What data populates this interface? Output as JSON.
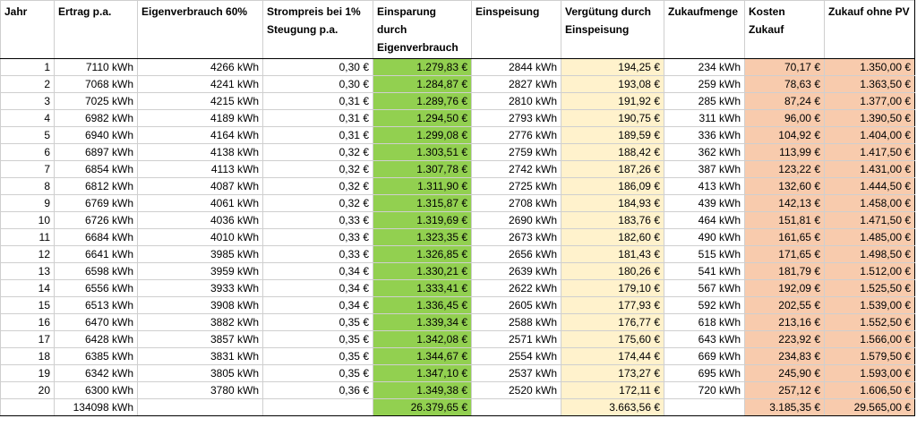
{
  "headers": [
    "Jahr",
    "Ertrag p.a.",
    "Eigenverbrauch 60%",
    "Strompreis bei 1% Steugung p.a.",
    "Einsparung durch Eigenverbrauch",
    "Einspeisung",
    "Vergütung durch Einspeisung",
    "Zukaufmenge",
    "Kosten Zukauf",
    "Zukauf ohne PV"
  ],
  "rows": [
    [
      "1",
      "7110 kWh",
      "4266 kWh",
      "0,30 €",
      "1.279,83 €",
      "2844 kWh",
      "194,25 €",
      "234 kWh",
      "70,17 €",
      "1.350,00 €"
    ],
    [
      "2",
      "7068 kWh",
      "4241 kWh",
      "0,30 €",
      "1.284,87 €",
      "2827 kWh",
      "193,08 €",
      "259 kWh",
      "78,63 €",
      "1.363,50 €"
    ],
    [
      "3",
      "7025 kWh",
      "4215 kWh",
      "0,31 €",
      "1.289,76 €",
      "2810 kWh",
      "191,92 €",
      "285 kWh",
      "87,24 €",
      "1.377,00 €"
    ],
    [
      "4",
      "6982 kWh",
      "4189 kWh",
      "0,31 €",
      "1.294,50 €",
      "2793 kWh",
      "190,75 €",
      "311 kWh",
      "96,00 €",
      "1.390,50 €"
    ],
    [
      "5",
      "6940 kWh",
      "4164 kWh",
      "0,31 €",
      "1.299,08 €",
      "2776 kWh",
      "189,59 €",
      "336 kWh",
      "104,92 €",
      "1.404,00 €"
    ],
    [
      "6",
      "6897 kWh",
      "4138 kWh",
      "0,32 €",
      "1.303,51 €",
      "2759 kWh",
      "188,42 €",
      "362 kWh",
      "113,99 €",
      "1.417,50 €"
    ],
    [
      "7",
      "6854 kWh",
      "4113 kWh",
      "0,32 €",
      "1.307,78 €",
      "2742 kWh",
      "187,26 €",
      "387 kWh",
      "123,22 €",
      "1.431,00 €"
    ],
    [
      "8",
      "6812 kWh",
      "4087 kWh",
      "0,32 €",
      "1.311,90 €",
      "2725 kWh",
      "186,09 €",
      "413 kWh",
      "132,60 €",
      "1.444,50 €"
    ],
    [
      "9",
      "6769 kWh",
      "4061 kWh",
      "0,32 €",
      "1.315,87 €",
      "2708 kWh",
      "184,93 €",
      "439 kWh",
      "142,13 €",
      "1.458,00 €"
    ],
    [
      "10",
      "6726 kWh",
      "4036 kWh",
      "0,33 €",
      "1.319,69 €",
      "2690 kWh",
      "183,76 €",
      "464 kWh",
      "151,81 €",
      "1.471,50 €"
    ],
    [
      "11",
      "6684 kWh",
      "4010 kWh",
      "0,33 €",
      "1.323,35 €",
      "2673 kWh",
      "182,60 €",
      "490 kWh",
      "161,65 €",
      "1.485,00 €"
    ],
    [
      "12",
      "6641 kWh",
      "3985 kWh",
      "0,33 €",
      "1.326,85 €",
      "2656 kWh",
      "181,43 €",
      "515 kWh",
      "171,65 €",
      "1.498,50 €"
    ],
    [
      "13",
      "6598 kWh",
      "3959 kWh",
      "0,34 €",
      "1.330,21 €",
      "2639 kWh",
      "180,26 €",
      "541 kWh",
      "181,79 €",
      "1.512,00 €"
    ],
    [
      "14",
      "6556 kWh",
      "3933 kWh",
      "0,34 €",
      "1.333,41 €",
      "2622 kWh",
      "179,10 €",
      "567 kWh",
      "192,09 €",
      "1.525,50 €"
    ],
    [
      "15",
      "6513 kWh",
      "3908 kWh",
      "0,34 €",
      "1.336,45 €",
      "2605 kWh",
      "177,93 €",
      "592 kWh",
      "202,55 €",
      "1.539,00 €"
    ],
    [
      "16",
      "6470 kWh",
      "3882 kWh",
      "0,35 €",
      "1.339,34 €",
      "2588 kWh",
      "176,77 €",
      "618 kWh",
      "213,16 €",
      "1.552,50 €"
    ],
    [
      "17",
      "6428 kWh",
      "3857 kWh",
      "0,35 €",
      "1.342,08 €",
      "2571 kWh",
      "175,60 €",
      "643 kWh",
      "223,92 €",
      "1.566,00 €"
    ],
    [
      "18",
      "6385 kWh",
      "3831 kWh",
      "0,35 €",
      "1.344,67 €",
      "2554 kWh",
      "174,44 €",
      "669 kWh",
      "234,83 €",
      "1.579,50 €"
    ],
    [
      "19",
      "6342 kWh",
      "3805 kWh",
      "0,35 €",
      "1.347,10 €",
      "2537 kWh",
      "173,27 €",
      "695 kWh",
      "245,90 €",
      "1.593,00 €"
    ],
    [
      "20",
      "6300 kWh",
      "3780 kWh",
      "0,36 €",
      "1.349,38 €",
      "2520 kWh",
      "172,11 €",
      "720 kWh",
      "257,12 €",
      "1.606,50 €"
    ]
  ],
  "totals": [
    "",
    "134098 kWh",
    "",
    "",
    "26.379,65 €",
    "",
    "3.663,56 €",
    "",
    "3.185,35 €",
    "29.565,00 €"
  ],
  "colors": {
    "savings_column": "#92d050",
    "feed_in_compensation_column": "#fff2cc",
    "purchase_cost_columns": "#f8cbad"
  }
}
